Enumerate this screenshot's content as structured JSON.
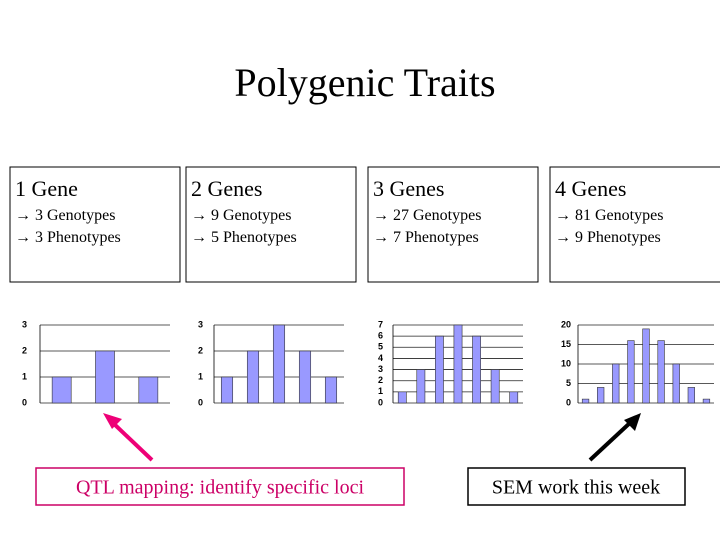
{
  "title": "Polygenic Traits",
  "boxes": [
    {
      "heading": "1 Gene",
      "lines": [
        "→ 3 Genotypes",
        "→ 3 Phenotypes"
      ]
    },
    {
      "heading": "2 Genes",
      "lines": [
        "→ 9 Genotypes",
        "→ 5 Phenotypes"
      ]
    },
    {
      "heading": "3 Genes",
      "lines": [
        "→ 27 Genotypes",
        "→ 7 Phenotypes"
      ]
    },
    {
      "heading": "4 Genes",
      "lines": [
        "→ 81 Genotypes",
        "→ 9 Phenotypes"
      ]
    }
  ],
  "callouts": [
    "QTL mapping:  identify specific loci",
    "SEM work this week"
  ],
  "chart_data": [
    {
      "type": "bar",
      "categories": [
        null,
        null,
        null
      ],
      "values": [
        1,
        2,
        1
      ],
      "color": "#9999ff",
      "ylim": [
        0,
        3
      ],
      "yticks": [
        0,
        1,
        2,
        3
      ],
      "grid": true
    },
    {
      "type": "bar",
      "categories": [
        null,
        null,
        null,
        null,
        null
      ],
      "values": [
        1,
        2,
        3,
        2,
        1
      ],
      "color": "#9999ff",
      "ylim": [
        0,
        3
      ],
      "yticks": [
        0,
        1,
        2,
        3
      ],
      "grid": true
    },
    {
      "type": "bar",
      "categories": [
        null,
        null,
        null,
        null,
        null,
        null,
        null
      ],
      "values": [
        1,
        3,
        6,
        7,
        6,
        3,
        1
      ],
      "color": "#9999ff",
      "ylim": [
        0,
        7
      ],
      "yticks": [
        0,
        1,
        2,
        3,
        4,
        5,
        6,
        7
      ],
      "grid": true
    },
    {
      "type": "bar",
      "categories": [
        null,
        null,
        null,
        null,
        null,
        null,
        null,
        null,
        null
      ],
      "values": [
        1,
        4,
        10,
        16,
        19,
        16,
        10,
        4,
        1
      ],
      "color": "#9999ff",
      "ylim": [
        0,
        20
      ],
      "yticks": [
        0,
        5,
        10,
        15,
        20
      ],
      "grid": true
    }
  ]
}
